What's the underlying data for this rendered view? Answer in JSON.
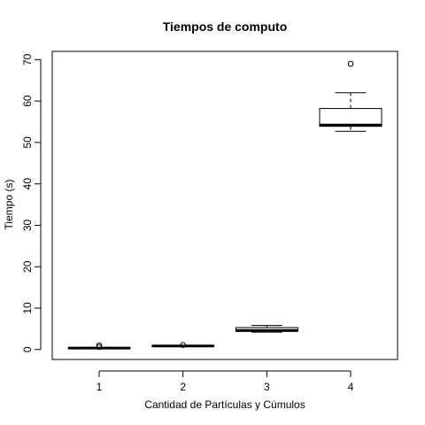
{
  "chart_data": {
    "type": "boxplot",
    "title": "Tiempos de computo",
    "xlabel": "Cantidad de Partículas y Cúmulos",
    "ylabel": "Tiempo (s)",
    "categories": [
      "1",
      "2",
      "3",
      "4"
    ],
    "ylim": [
      -2.4,
      72
    ],
    "yticks": [
      0,
      10,
      20,
      30,
      40,
      50,
      60,
      70
    ],
    "grid": false,
    "boxes": [
      {
        "category": "1",
        "whisker_low": 0.2,
        "q1": 0.3,
        "median": 0.35,
        "q3": 0.45,
        "whisker_high": 0.5,
        "outliers": [
          1.0,
          0.6
        ]
      },
      {
        "category": "2",
        "whisker_low": 0.75,
        "q1": 0.8,
        "median": 0.85,
        "q3": 0.95,
        "whisker_high": 1.0,
        "outliers": [
          1.1
        ]
      },
      {
        "category": "3",
        "whisker_low": 4.2,
        "q1": 4.4,
        "median": 4.6,
        "q3": 5.3,
        "whisker_high": 5.8,
        "outliers": []
      },
      {
        "category": "4",
        "whisker_low": 52.7,
        "q1": 53.9,
        "median": 54.2,
        "q3": 58.2,
        "whisker_high": 62.0,
        "outliers": [
          69.0
        ]
      }
    ]
  }
}
